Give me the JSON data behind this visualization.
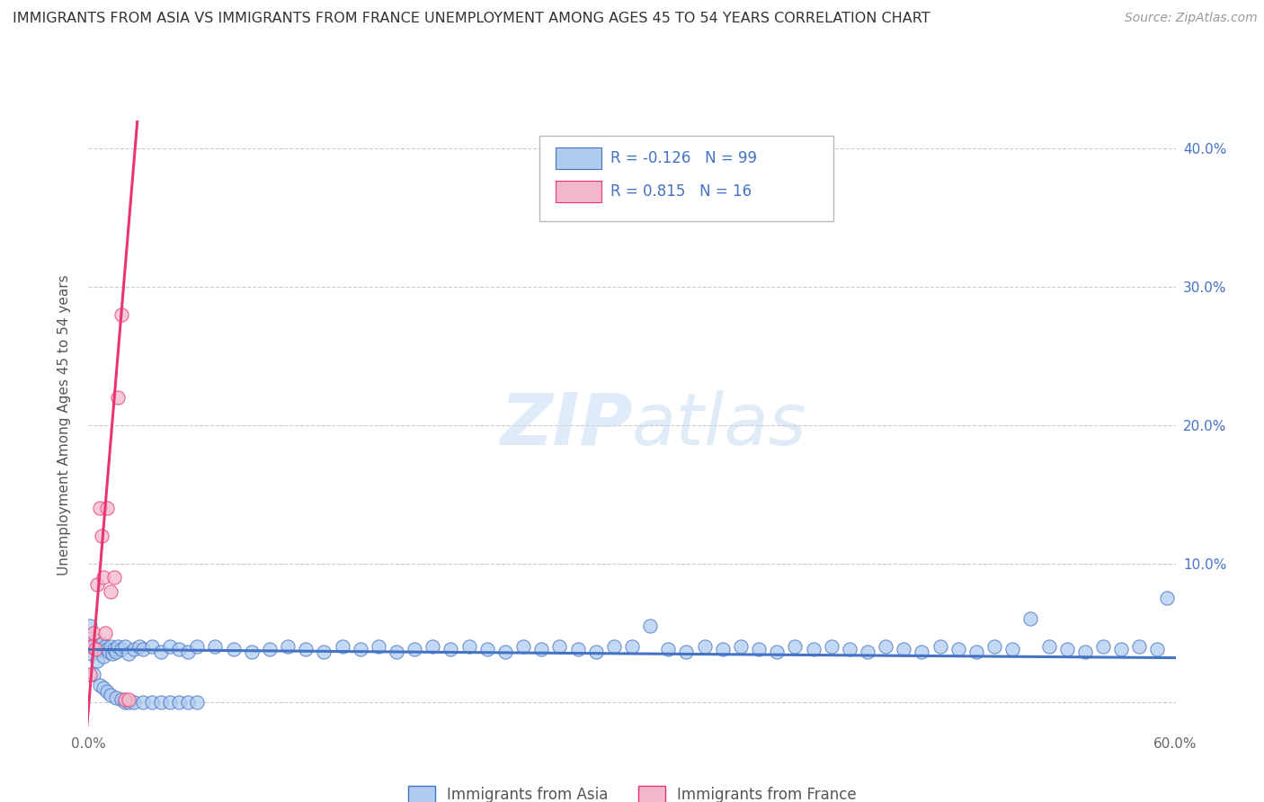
{
  "title": "IMMIGRANTS FROM ASIA VS IMMIGRANTS FROM FRANCE UNEMPLOYMENT AMONG AGES 45 TO 54 YEARS CORRELATION CHART",
  "source": "Source: ZipAtlas.com",
  "ylabel": "Unemployment Among Ages 45 to 54 years",
  "xlim": [
    0.0,
    0.6
  ],
  "ylim": [
    -0.02,
    0.42
  ],
  "xtick_positions": [
    0.0,
    0.1,
    0.2,
    0.3,
    0.4,
    0.5,
    0.6
  ],
  "xtick_labels": [
    "0.0%",
    "",
    "",
    "",
    "",
    "",
    "60.0%"
  ],
  "ytick_positions": [
    0.0,
    0.1,
    0.2,
    0.3,
    0.4
  ],
  "ytick_labels_left": [
    "",
    "",
    "",
    "",
    ""
  ],
  "ytick_labels_right": [
    "",
    "10.0%",
    "20.0%",
    "30.0%",
    "40.0%"
  ],
  "watermark_part1": "ZIP",
  "watermark_part2": "atlas",
  "legend_entries": [
    {
      "label": "Immigrants from Asia",
      "R": "-0.126",
      "N": "99",
      "fill_color": "#aecbf0",
      "edge_color": "#4472c4"
    },
    {
      "label": "Immigrants from France",
      "R": "0.815",
      "N": "16",
      "fill_color": "#f4b8cb",
      "edge_color": "#e8356d"
    }
  ],
  "asia_trend_x": [
    0.0,
    0.6
  ],
  "asia_trend_y": [
    0.038,
    0.032
  ],
  "france_trend_x": [
    -0.001,
    0.027
  ],
  "france_trend_y": [
    -0.02,
    0.42
  ],
  "background_color": "#ffffff",
  "grid_color": "#cccccc",
  "title_fontsize": 11.5,
  "source_fontsize": 10,
  "axis_label_fontsize": 11,
  "tick_fontsize": 11,
  "legend_fontsize": 12,
  "scatter_size": 120,
  "trend_linewidth": 2.2,
  "asia_scatter_x": [
    0.001,
    0.002,
    0.003,
    0.004,
    0.005,
    0.006,
    0.007,
    0.008,
    0.009,
    0.01,
    0.011,
    0.012,
    0.013,
    0.014,
    0.015,
    0.016,
    0.018,
    0.02,
    0.022,
    0.025,
    0.028,
    0.03,
    0.035,
    0.04,
    0.045,
    0.05,
    0.055,
    0.06,
    0.07,
    0.08,
    0.09,
    0.1,
    0.11,
    0.12,
    0.13,
    0.14,
    0.15,
    0.16,
    0.17,
    0.18,
    0.19,
    0.2,
    0.21,
    0.22,
    0.23,
    0.24,
    0.25,
    0.26,
    0.27,
    0.28,
    0.29,
    0.3,
    0.31,
    0.32,
    0.33,
    0.34,
    0.35,
    0.36,
    0.37,
    0.38,
    0.39,
    0.4,
    0.41,
    0.42,
    0.43,
    0.44,
    0.45,
    0.46,
    0.47,
    0.48,
    0.49,
    0.5,
    0.51,
    0.52,
    0.53,
    0.54,
    0.55,
    0.56,
    0.57,
    0.58,
    0.59,
    0.595,
    0.003,
    0.006,
    0.008,
    0.01,
    0.012,
    0.015,
    0.018,
    0.02,
    0.022,
    0.025,
    0.03,
    0.035,
    0.04,
    0.045,
    0.05,
    0.055,
    0.06
  ],
  "asia_scatter_y": [
    0.055,
    0.035,
    0.04,
    0.045,
    0.03,
    0.038,
    0.042,
    0.033,
    0.04,
    0.038,
    0.036,
    0.04,
    0.035,
    0.038,
    0.036,
    0.04,
    0.038,
    0.04,
    0.035,
    0.038,
    0.04,
    0.038,
    0.04,
    0.036,
    0.04,
    0.038,
    0.036,
    0.04,
    0.04,
    0.038,
    0.036,
    0.038,
    0.04,
    0.038,
    0.036,
    0.04,
    0.038,
    0.04,
    0.036,
    0.038,
    0.04,
    0.038,
    0.04,
    0.038,
    0.036,
    0.04,
    0.038,
    0.04,
    0.038,
    0.036,
    0.04,
    0.04,
    0.055,
    0.038,
    0.036,
    0.04,
    0.038,
    0.04,
    0.038,
    0.036,
    0.04,
    0.038,
    0.04,
    0.038,
    0.036,
    0.04,
    0.038,
    0.036,
    0.04,
    0.038,
    0.036,
    0.04,
    0.038,
    0.06,
    0.04,
    0.038,
    0.036,
    0.04,
    0.038,
    0.04,
    0.038,
    0.075,
    0.02,
    0.012,
    0.01,
    0.008,
    0.005,
    0.003,
    0.002,
    0.0,
    0.0,
    0.0,
    0.0,
    0.0,
    0.0,
    0.0,
    0.0,
    0.0,
    0.0
  ],
  "france_scatter_x": [
    0.001,
    0.002,
    0.003,
    0.004,
    0.005,
    0.006,
    0.007,
    0.008,
    0.009,
    0.01,
    0.012,
    0.014,
    0.016,
    0.018,
    0.02,
    0.022
  ],
  "france_scatter_y": [
    0.02,
    0.04,
    0.05,
    0.038,
    0.085,
    0.14,
    0.12,
    0.09,
    0.05,
    0.14,
    0.08,
    0.09,
    0.22,
    0.28,
    0.002,
    0.002
  ]
}
